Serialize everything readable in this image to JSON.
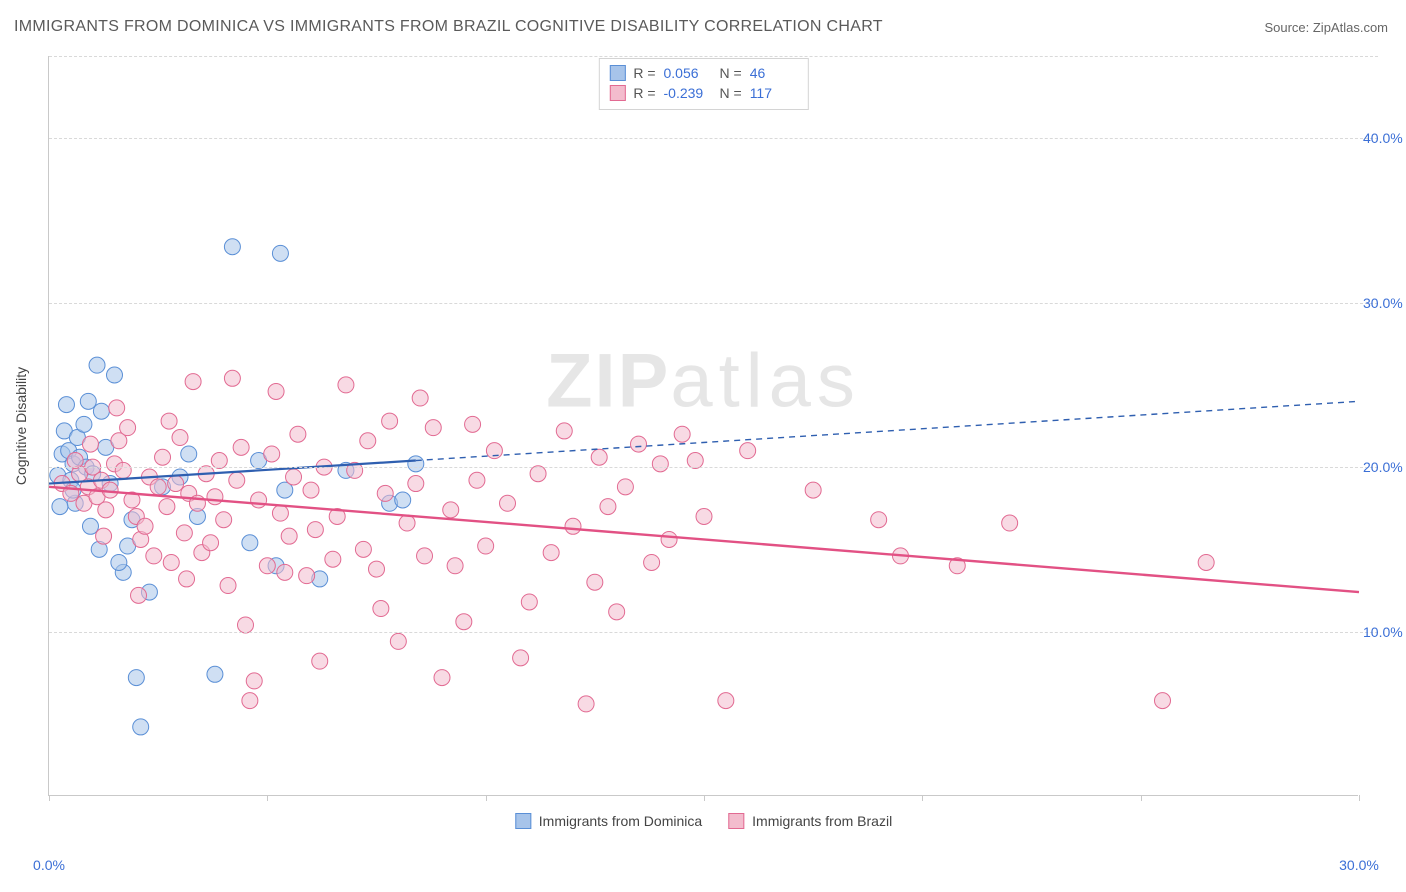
{
  "title": "IMMIGRANTS FROM DOMINICA VS IMMIGRANTS FROM BRAZIL COGNITIVE DISABILITY CORRELATION CHART",
  "source": "Source: ZipAtlas.com",
  "watermark_zip": "ZIP",
  "watermark_atlas": "atlas",
  "yaxis_label": "Cognitive Disability",
  "chart": {
    "type": "scatter",
    "xlim": [
      0,
      30
    ],
    "ylim": [
      0,
      45
    ],
    "x_ticks": [
      0,
      5,
      10,
      15,
      20,
      25,
      30
    ],
    "y_gridlines": [
      10,
      20,
      30,
      40
    ],
    "x_tick_labels": {
      "0": "0.0%",
      "30": "30.0%"
    },
    "y_tick_labels": {
      "10": "10.0%",
      "20": "20.0%",
      "30": "30.0%",
      "40": "40.0%"
    },
    "background_color": "#ffffff",
    "grid_color": "#d9d9d9",
    "axis_color": "#c9c9c9",
    "tick_label_color": "#3b6fd6",
    "tick_label_fontsize": 14,
    "title_fontsize": 16,
    "title_color": "#5a5a5a",
    "marker_radius": 8,
    "marker_opacity": 0.55,
    "series": [
      {
        "name": "Immigrants from Dominica",
        "color_fill": "#a7c4ea",
        "color_stroke": "#5a8fd6",
        "R": "0.056",
        "N": "46",
        "trend": {
          "x1": 0,
          "y1": 19.0,
          "x2": 30,
          "y2": 24.0,
          "solid_until_x": 8.4,
          "color": "#2f5fb0",
          "width": 2.2
        },
        "points": [
          [
            0.2,
            19.5
          ],
          [
            0.3,
            20.8
          ],
          [
            0.35,
            22.2
          ],
          [
            0.4,
            23.8
          ],
          [
            0.45,
            21.0
          ],
          [
            0.5,
            19.2
          ],
          [
            0.55,
            20.2
          ],
          [
            0.6,
            17.8
          ],
          [
            0.65,
            21.8
          ],
          [
            0.7,
            20.6
          ],
          [
            0.8,
            22.6
          ],
          [
            0.85,
            20.0
          ],
          [
            0.9,
            24.0
          ],
          [
            1.0,
            19.6
          ],
          [
            1.1,
            26.2
          ],
          [
            1.2,
            23.4
          ],
          [
            1.3,
            21.2
          ],
          [
            1.4,
            19.0
          ],
          [
            1.5,
            25.6
          ],
          [
            1.7,
            13.6
          ],
          [
            1.8,
            15.2
          ],
          [
            1.6,
            14.2
          ],
          [
            1.9,
            16.8
          ],
          [
            2.0,
            7.2
          ],
          [
            2.1,
            4.2
          ],
          [
            2.3,
            12.4
          ],
          [
            1.15,
            15.0
          ],
          [
            0.95,
            16.4
          ],
          [
            0.55,
            18.6
          ],
          [
            0.25,
            17.6
          ],
          [
            2.6,
            18.8
          ],
          [
            3.0,
            19.4
          ],
          [
            3.4,
            17.0
          ],
          [
            3.8,
            7.4
          ],
          [
            4.2,
            33.4
          ],
          [
            4.8,
            20.4
          ],
          [
            5.2,
            14.0
          ],
          [
            5.3,
            33.0
          ],
          [
            5.4,
            18.6
          ],
          [
            6.2,
            13.2
          ],
          [
            6.8,
            19.8
          ],
          [
            7.8,
            17.8
          ],
          [
            8.1,
            18.0
          ],
          [
            8.4,
            20.2
          ],
          [
            3.2,
            20.8
          ],
          [
            4.6,
            15.4
          ]
        ]
      },
      {
        "name": "Immigrants from Brazil",
        "color_fill": "#f3bccd",
        "color_stroke": "#e26a92",
        "R": "-0.239",
        "N": "117",
        "trend": {
          "x1": 0,
          "y1": 18.8,
          "x2": 30,
          "y2": 12.4,
          "solid_until_x": 30,
          "color": "#e25184",
          "width": 2.4
        },
        "points": [
          [
            0.3,
            19.0
          ],
          [
            0.5,
            18.4
          ],
          [
            0.7,
            19.6
          ],
          [
            0.8,
            17.8
          ],
          [
            0.9,
            18.8
          ],
          [
            1.0,
            20.0
          ],
          [
            1.1,
            18.2
          ],
          [
            1.2,
            19.2
          ],
          [
            1.3,
            17.4
          ],
          [
            1.4,
            18.6
          ],
          [
            1.5,
            20.2
          ],
          [
            1.6,
            21.6
          ],
          [
            1.7,
            19.8
          ],
          [
            1.8,
            22.4
          ],
          [
            1.9,
            18.0
          ],
          [
            2.0,
            17.0
          ],
          [
            2.1,
            15.6
          ],
          [
            2.2,
            16.4
          ],
          [
            2.3,
            19.4
          ],
          [
            2.4,
            14.6
          ],
          [
            2.5,
            18.8
          ],
          [
            2.6,
            20.6
          ],
          [
            2.7,
            17.6
          ],
          [
            2.8,
            14.2
          ],
          [
            2.9,
            19.0
          ],
          [
            3.0,
            21.8
          ],
          [
            3.1,
            16.0
          ],
          [
            3.2,
            18.4
          ],
          [
            3.3,
            25.2
          ],
          [
            3.4,
            17.8
          ],
          [
            3.5,
            14.8
          ],
          [
            3.6,
            19.6
          ],
          [
            3.7,
            15.4
          ],
          [
            3.8,
            18.2
          ],
          [
            3.9,
            20.4
          ],
          [
            4.0,
            16.8
          ],
          [
            4.2,
            25.4
          ],
          [
            4.3,
            19.2
          ],
          [
            4.5,
            10.4
          ],
          [
            4.6,
            5.8
          ],
          [
            4.7,
            7.0
          ],
          [
            4.8,
            18.0
          ],
          [
            5.0,
            14.0
          ],
          [
            5.1,
            20.8
          ],
          [
            5.2,
            24.6
          ],
          [
            5.3,
            17.2
          ],
          [
            5.5,
            15.8
          ],
          [
            5.6,
            19.4
          ],
          [
            5.7,
            22.0
          ],
          [
            5.9,
            13.4
          ],
          [
            6.0,
            18.6
          ],
          [
            6.1,
            16.2
          ],
          [
            6.3,
            20.0
          ],
          [
            6.5,
            14.4
          ],
          [
            6.6,
            17.0
          ],
          [
            6.8,
            25.0
          ],
          [
            7.0,
            19.8
          ],
          [
            7.2,
            15.0
          ],
          [
            7.3,
            21.6
          ],
          [
            7.5,
            13.8
          ],
          [
            7.7,
            18.4
          ],
          [
            7.8,
            22.8
          ],
          [
            8.0,
            9.4
          ],
          [
            8.2,
            16.6
          ],
          [
            8.4,
            19.0
          ],
          [
            8.6,
            14.6
          ],
          [
            8.8,
            22.4
          ],
          [
            9.0,
            7.2
          ],
          [
            9.2,
            17.4
          ],
          [
            9.5,
            10.6
          ],
          [
            9.7,
            22.6
          ],
          [
            9.8,
            19.2
          ],
          [
            10.0,
            15.2
          ],
          [
            10.2,
            21.0
          ],
          [
            10.5,
            17.8
          ],
          [
            10.8,
            8.4
          ],
          [
            11.0,
            11.8
          ],
          [
            11.2,
            19.6
          ],
          [
            11.5,
            14.8
          ],
          [
            11.8,
            22.2
          ],
          [
            12.0,
            16.4
          ],
          [
            12.3,
            5.6
          ],
          [
            12.5,
            13.0
          ],
          [
            12.6,
            20.6
          ],
          [
            12.8,
            17.6
          ],
          [
            13.0,
            11.2
          ],
          [
            13.2,
            18.8
          ],
          [
            13.5,
            21.4
          ],
          [
            14.0,
            20.2
          ],
          [
            14.2,
            15.6
          ],
          [
            14.5,
            22.0
          ],
          [
            14.8,
            20.4
          ],
          [
            15.0,
            17.0
          ],
          [
            15.5,
            5.8
          ],
          [
            16.0,
            21.0
          ],
          [
            17.5,
            18.6
          ],
          [
            19.0,
            16.8
          ],
          [
            8.5,
            24.2
          ],
          [
            6.2,
            8.2
          ],
          [
            5.4,
            13.6
          ],
          [
            9.3,
            14.0
          ],
          [
            4.1,
            12.8
          ],
          [
            3.15,
            13.2
          ],
          [
            7.6,
            11.4
          ],
          [
            19.5,
            14.6
          ],
          [
            20.8,
            14.0
          ],
          [
            22.0,
            16.6
          ],
          [
            25.5,
            5.8
          ],
          [
            26.5,
            14.2
          ],
          [
            13.8,
            14.2
          ],
          [
            2.05,
            12.2
          ],
          [
            1.25,
            15.8
          ],
          [
            0.95,
            21.4
          ],
          [
            1.55,
            23.6
          ],
          [
            0.6,
            20.4
          ],
          [
            2.75,
            22.8
          ],
          [
            4.4,
            21.2
          ]
        ]
      }
    ]
  },
  "legend": {
    "stats_rows": [
      {
        "swatch_fill": "#a7c4ea",
        "swatch_stroke": "#5a8fd6",
        "R_label": "R =",
        "R": "0.056",
        "N_label": "N =",
        "N": "46"
      },
      {
        "swatch_fill": "#f3bccd",
        "swatch_stroke": "#e26a92",
        "R_label": "R =",
        "R": "-0.239",
        "N_label": "N =",
        "N": "117"
      }
    ],
    "bottom": [
      {
        "swatch_fill": "#a7c4ea",
        "swatch_stroke": "#5a8fd6",
        "label": "Immigrants from Dominica"
      },
      {
        "swatch_fill": "#f3bccd",
        "swatch_stroke": "#e26a92",
        "label": "Immigrants from Brazil"
      }
    ]
  }
}
